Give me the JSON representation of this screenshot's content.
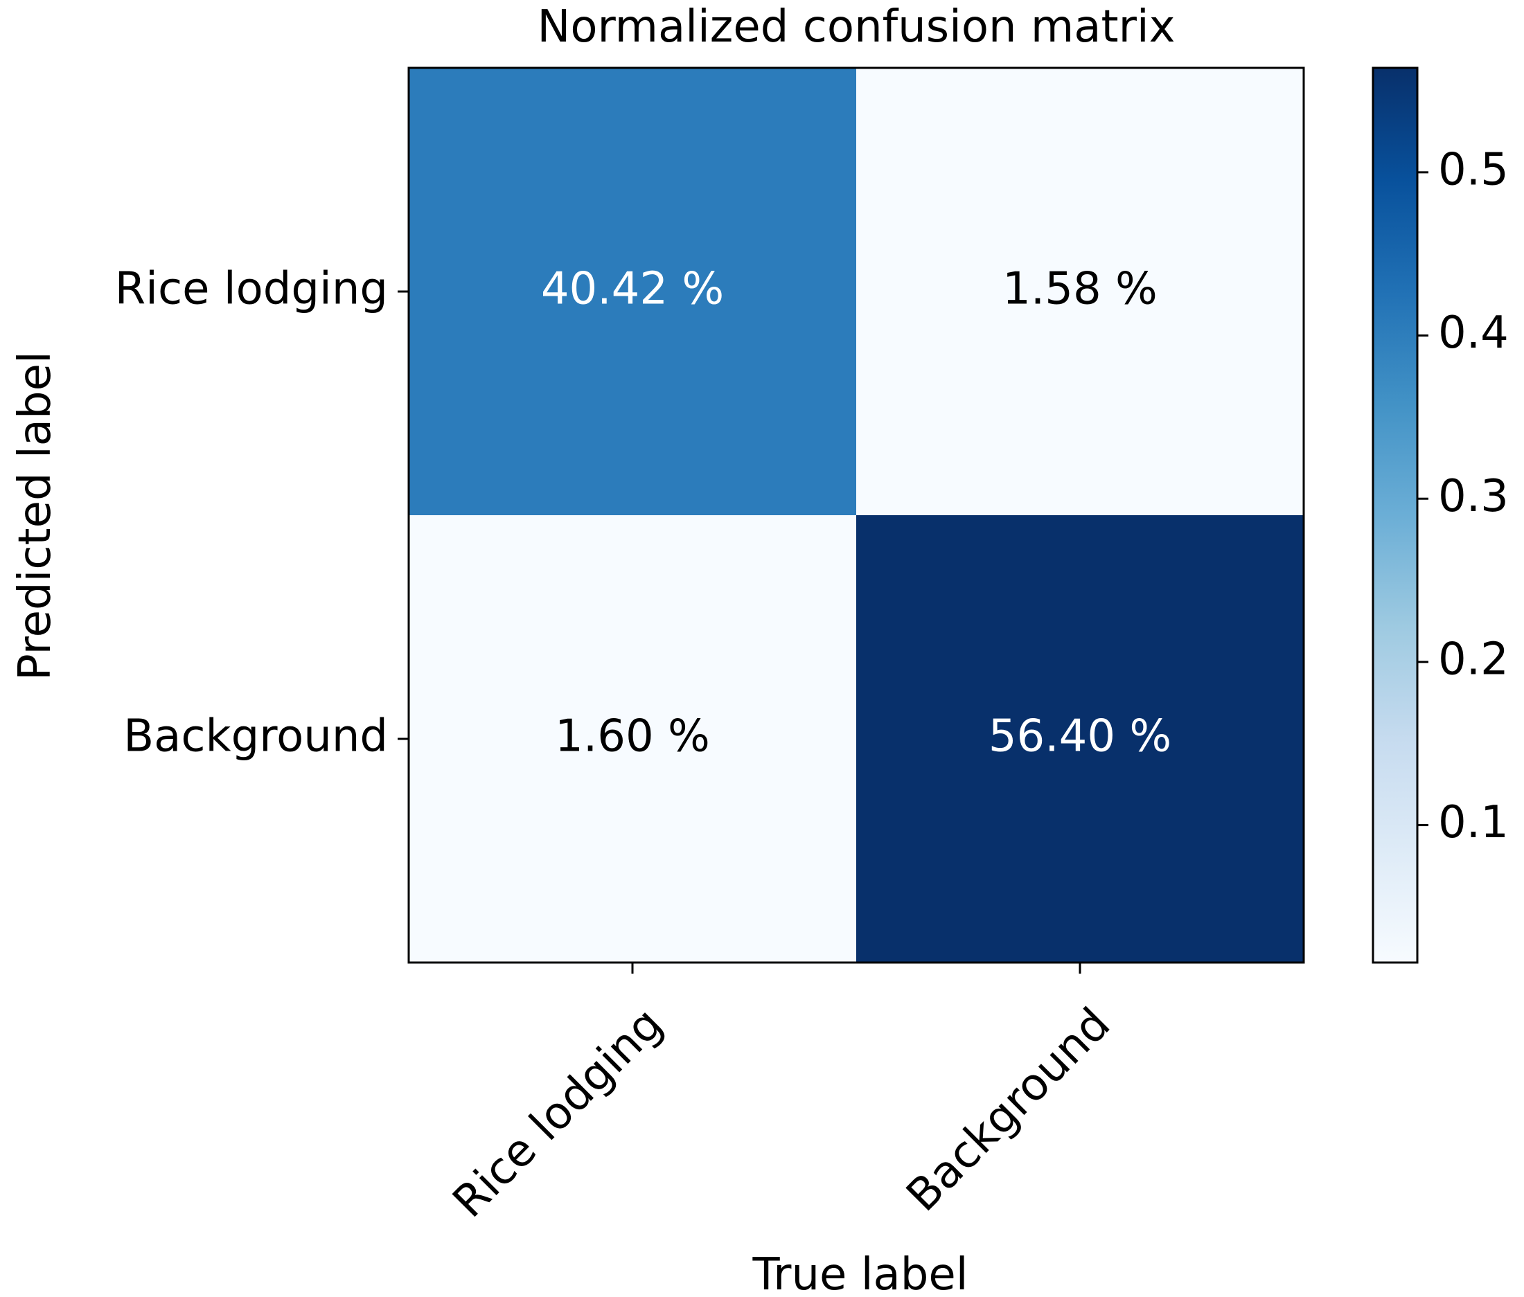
{
  "chart_data": {
    "type": "heatmap",
    "title": "Normalized confusion matrix",
    "xlabel": "True label",
    "ylabel": "Predicted label",
    "x_categories": [
      "Rice lodging",
      "Background"
    ],
    "y_categories": [
      "Rice lodging",
      "Background"
    ],
    "values": [
      [
        0.4042,
        0.0158
      ],
      [
        0.016,
        0.564
      ]
    ],
    "cell_labels": [
      [
        "40.42 %",
        "1.58 %"
      ],
      [
        "1.60 %",
        "56.40 %"
      ]
    ],
    "colormap": "Blues",
    "colorbar": {
      "range": [
        0.0158,
        0.564
      ],
      "ticks": [
        0.1,
        0.2,
        0.3,
        0.4,
        0.5
      ],
      "tick_labels": [
        "0.1",
        "0.2",
        "0.3",
        "0.4",
        "0.5"
      ]
    },
    "grid": false
  }
}
